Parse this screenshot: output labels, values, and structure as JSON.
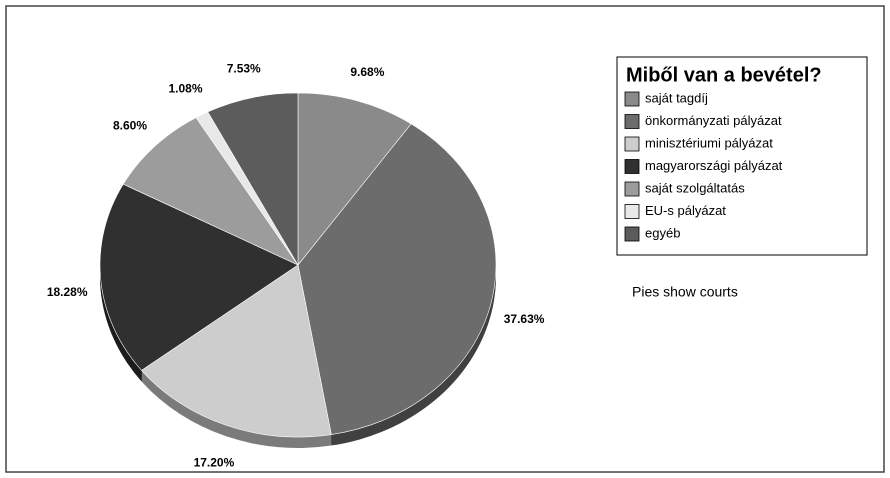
{
  "chart_data": {
    "type": "pie",
    "title": "Miből van a bevétel?",
    "note": "Pies show courts",
    "categories": [
      "saját tagdíj",
      "önkormányzati pályázat",
      "minisztériumi pályázat",
      "magyarországi pályázat",
      "saját szolgáltatás",
      "EU-s pályázat",
      "egyéb"
    ],
    "values": [
      9.68,
      37.63,
      17.2,
      18.28,
      8.6,
      1.08,
      7.53
    ],
    "value_labels": [
      "9.68%",
      "37.63%",
      "17.20%",
      "18.28%",
      "8.60%",
      "1.08%",
      "7.53%"
    ],
    "colors": [
      "#8a8a8a",
      "#6c6c6c",
      "#cdcdcd",
      "#303030",
      "#9c9c9c",
      "#e8e8e8",
      "#5c5c5c"
    ],
    "legend": "right"
  }
}
